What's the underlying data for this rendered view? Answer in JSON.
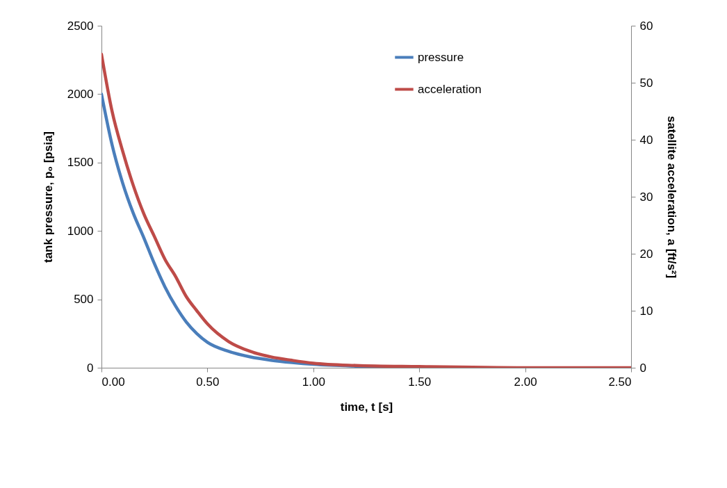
{
  "chart_data": {
    "type": "line",
    "xlabel": "time, t [s]",
    "ylabel": "tank pressure, p₀ [psia]",
    "y2label": "satellite acceleration,  a [ft/s²]",
    "x": [
      0,
      0.05,
      0.1,
      0.15,
      0.2,
      0.25,
      0.3,
      0.35,
      0.4,
      0.45,
      0.5,
      0.6,
      0.7,
      0.8,
      0.9,
      1.0,
      1.2,
      1.5,
      2.0,
      2.5
    ],
    "series": [
      {
        "name": "pressure",
        "color": "#4a7ebb",
        "values": [
          2000,
          1630,
          1350,
          1130,
          950,
          760,
          590,
          450,
          335,
          250,
          186,
          120,
          80,
          55,
          38,
          25,
          12,
          5,
          null,
          null
        ]
      },
      {
        "name": "acceleration",
        "color": "#be4b48",
        "axis": "y2",
        "values": [
          55,
          45,
          38,
          32,
          27,
          23,
          19,
          16,
          12.5,
          10,
          7.7,
          4.6,
          2.9,
          1.9,
          1.3,
          0.8,
          0.4,
          0.2,
          0,
          0
        ]
      }
    ],
    "xlim": [
      0,
      2.5
    ],
    "xticks": [
      {
        "value": 0,
        "label": "0.00"
      },
      {
        "value": 0.5,
        "label": "0.50"
      },
      {
        "value": 1,
        "label": "1.00"
      },
      {
        "value": 1.5,
        "label": "1.50"
      },
      {
        "value": 2,
        "label": "2.00"
      },
      {
        "value": 2.5,
        "label": "2.50"
      }
    ],
    "ylim": [
      0,
      2500
    ],
    "yticks": [
      0,
      500,
      1000,
      1500,
      2000,
      2500
    ],
    "y2lim": [
      0,
      60
    ],
    "y2ticks": [
      0,
      10,
      20,
      30,
      40,
      50,
      60
    ],
    "legend": "top right",
    "grid": false,
    "marker": "none",
    "line_style": "solid"
  }
}
